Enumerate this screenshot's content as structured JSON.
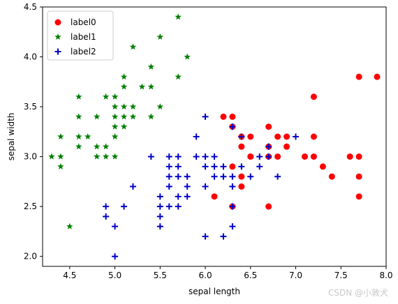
{
  "chart_data": {
    "type": "scatter",
    "xlabel": "sepal length",
    "ylabel": "sepal width",
    "xlim": [
      4.2,
      8.0
    ],
    "ylim": [
      1.9,
      4.5
    ],
    "xticks": [
      4.5,
      5.0,
      5.5,
      6.0,
      6.5,
      7.0,
      7.5,
      8.0
    ],
    "xtick_labels": [
      "4.5",
      "5.0",
      "5.5",
      "6.0",
      "6.5",
      "7.0",
      "7.5",
      "8.0"
    ],
    "yticks": [
      2.0,
      2.5,
      3.0,
      3.5,
      4.0,
      4.5
    ],
    "ytick_labels": [
      "2.0",
      "2.5",
      "3.0",
      "3.5",
      "4.0",
      "4.5"
    ],
    "grid": false,
    "legend": "top-left",
    "series": [
      {
        "name": "label0",
        "marker": "circle",
        "color": "#ff0000",
        "points": [
          [
            6.1,
            2.6
          ],
          [
            6.2,
            3.4
          ],
          [
            6.3,
            3.4
          ],
          [
            6.3,
            3.3
          ],
          [
            6.3,
            2.9
          ],
          [
            6.3,
            2.5
          ],
          [
            6.4,
            3.2
          ],
          [
            6.4,
            3.1
          ],
          [
            6.4,
            2.8
          ],
          [
            6.4,
            2.7
          ],
          [
            6.5,
            3.2
          ],
          [
            6.5,
            3.0
          ],
          [
            6.5,
            3.0
          ],
          [
            6.7,
            3.3
          ],
          [
            6.7,
            3.1
          ],
          [
            6.7,
            3.0
          ],
          [
            6.7,
            2.5
          ],
          [
            6.8,
            3.2
          ],
          [
            6.8,
            3.0
          ],
          [
            6.9,
            3.2
          ],
          [
            6.9,
            3.1
          ],
          [
            7.1,
            3.0
          ],
          [
            7.2,
            3.6
          ],
          [
            7.2,
            3.2
          ],
          [
            7.2,
            3.0
          ],
          [
            7.3,
            2.9
          ],
          [
            7.4,
            2.8
          ],
          [
            7.6,
            3.0
          ],
          [
            7.7,
            3.8
          ],
          [
            7.7,
            3.0
          ],
          [
            7.7,
            2.8
          ],
          [
            7.7,
            2.6
          ],
          [
            7.9,
            3.8
          ]
        ]
      },
      {
        "name": "label1",
        "marker": "star",
        "color": "#008000",
        "points": [
          [
            4.3,
            3.0
          ],
          [
            4.4,
            3.2
          ],
          [
            4.4,
            3.0
          ],
          [
            4.4,
            2.9
          ],
          [
            4.5,
            2.3
          ],
          [
            4.6,
            3.6
          ],
          [
            4.6,
            3.4
          ],
          [
            4.6,
            3.2
          ],
          [
            4.6,
            3.1
          ],
          [
            4.7,
            3.2
          ],
          [
            4.8,
            3.4
          ],
          [
            4.8,
            3.1
          ],
          [
            4.8,
            3.0
          ],
          [
            4.9,
            3.6
          ],
          [
            4.9,
            3.1
          ],
          [
            4.9,
            3.0
          ],
          [
            5.0,
            3.6
          ],
          [
            5.0,
            3.5
          ],
          [
            5.0,
            3.4
          ],
          [
            5.0,
            3.3
          ],
          [
            5.0,
            3.2
          ],
          [
            5.0,
            3.0
          ],
          [
            5.1,
            3.8
          ],
          [
            5.1,
            3.7
          ],
          [
            5.1,
            3.5
          ],
          [
            5.1,
            3.4
          ],
          [
            5.1,
            3.3
          ],
          [
            5.2,
            4.1
          ],
          [
            5.2,
            3.5
          ],
          [
            5.2,
            3.4
          ],
          [
            5.3,
            3.7
          ],
          [
            5.4,
            3.9
          ],
          [
            5.4,
            3.7
          ],
          [
            5.4,
            3.4
          ],
          [
            5.5,
            4.2
          ],
          [
            5.5,
            3.5
          ],
          [
            5.7,
            4.4
          ],
          [
            5.7,
            3.8
          ],
          [
            5.8,
            4.0
          ]
        ]
      },
      {
        "name": "label2",
        "marker": "plus",
        "color": "#0000cc",
        "points": [
          [
            4.9,
            2.5
          ],
          [
            4.9,
            2.4
          ],
          [
            5.0,
            2.3
          ],
          [
            5.0,
            2.0
          ],
          [
            5.1,
            2.5
          ],
          [
            5.2,
            2.7
          ],
          [
            5.4,
            3.0
          ],
          [
            5.5,
            2.6
          ],
          [
            5.5,
            2.5
          ],
          [
            5.5,
            2.4
          ],
          [
            5.5,
            2.3
          ],
          [
            5.6,
            3.0
          ],
          [
            5.6,
            2.9
          ],
          [
            5.6,
            2.8
          ],
          [
            5.6,
            2.7
          ],
          [
            5.6,
            2.5
          ],
          [
            5.7,
            3.0
          ],
          [
            5.7,
            2.9
          ],
          [
            5.7,
            2.8
          ],
          [
            5.7,
            2.6
          ],
          [
            5.7,
            2.5
          ],
          [
            5.8,
            2.8
          ],
          [
            5.8,
            2.7
          ],
          [
            5.8,
            2.6
          ],
          [
            5.9,
            3.2
          ],
          [
            5.9,
            3.0
          ],
          [
            6.0,
            3.4
          ],
          [
            6.0,
            3.0
          ],
          [
            6.0,
            2.9
          ],
          [
            6.0,
            2.7
          ],
          [
            6.0,
            2.2
          ],
          [
            6.1,
            3.0
          ],
          [
            6.1,
            2.9
          ],
          [
            6.1,
            2.8
          ],
          [
            6.2,
            2.9
          ],
          [
            6.2,
            2.8
          ],
          [
            6.2,
            2.2
          ],
          [
            6.3,
            3.3
          ],
          [
            6.3,
            2.8
          ],
          [
            6.3,
            2.7
          ],
          [
            6.3,
            2.5
          ],
          [
            6.3,
            2.3
          ],
          [
            6.4,
            3.2
          ],
          [
            6.4,
            2.9
          ],
          [
            6.5,
            2.8
          ],
          [
            6.6,
            3.0
          ],
          [
            6.6,
            2.9
          ],
          [
            6.7,
            3.1
          ],
          [
            6.7,
            3.0
          ],
          [
            6.8,
            2.8
          ],
          [
            7.0,
            3.2
          ]
        ]
      }
    ]
  },
  "watermark": "CSDN @小敦犬"
}
